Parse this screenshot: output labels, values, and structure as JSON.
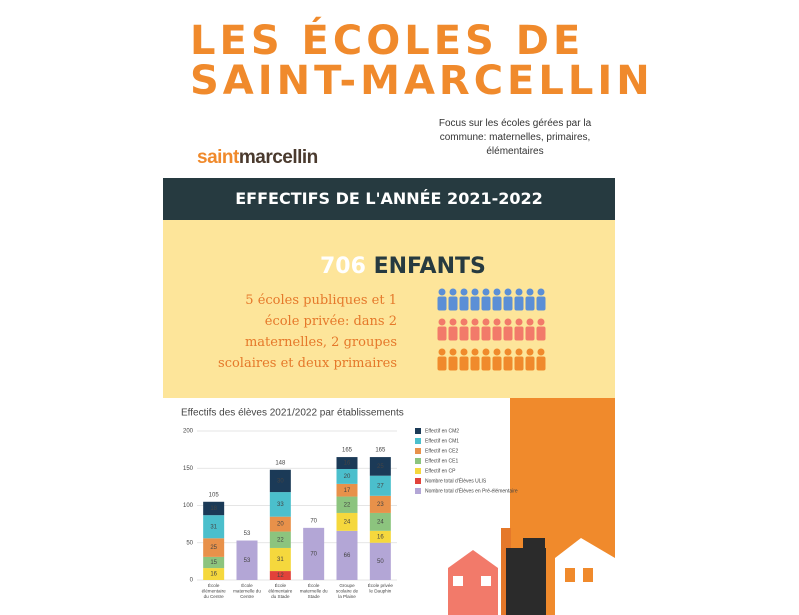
{
  "header": {
    "title_line1": "LES ÉCOLES DE",
    "title_line2": "SAINT-MARCELLIN",
    "subtitle": "Focus sur les écoles gérées par la commune: maternelles, primaires, élémentaires",
    "logo_part1": "saint",
    "logo_part2": "marcellin"
  },
  "banner": {
    "title": "EFFECTIFS DE L'ANNÉE 2021-2022"
  },
  "summary": {
    "count": "706",
    "count_label": "ENFANTS",
    "description": "5 écoles publiques et 1 école privée: dans 2 maternelles, 2 groupes scolaires et deux primaires"
  },
  "chart_data": {
    "type": "stacked_bar",
    "title": "Effectifs des élèves 2021/2022 par établissements",
    "categories": [
      "École élémentaire du Centre",
      "École maternelle du Centre",
      "École élémentaire du Stade",
      "École maternelle du Stade",
      "Groupe scolaire de la Plaine",
      "École privée le Dauphin"
    ],
    "series": [
      {
        "name": "Effectif en CM2",
        "color": "#1b3a57",
        "values": [
          18,
          null,
          30,
          null,
          16,
          25
        ]
      },
      {
        "name": "Effectif en CM1",
        "color": "#4bbfcc",
        "values": [
          31,
          null,
          33,
          null,
          20,
          27
        ]
      },
      {
        "name": "Effectif en CE2",
        "color": "#e8914a",
        "values": [
          25,
          null,
          20,
          null,
          17,
          23
        ]
      },
      {
        "name": "Effectif en CE1",
        "color": "#8cc47e",
        "values": [
          15,
          null,
          22,
          null,
          22,
          24
        ]
      },
      {
        "name": "Effectif en CP",
        "color": "#f5d83d",
        "values": [
          16,
          null,
          31,
          null,
          24,
          16
        ]
      },
      {
        "name": "Nombre total d'Élèves ULIS",
        "color": "#e2423a",
        "values": [
          null,
          null,
          12,
          null,
          null,
          null
        ]
      },
      {
        "name": "Nombre total d'Élèves en Pré-élémentaire",
        "color": "#b3a6d6",
        "values": [
          null,
          53,
          null,
          70,
          66,
          50
        ]
      }
    ],
    "totals": [
      105,
      53,
      148,
      70,
      165,
      165
    ],
    "ylim": [
      0,
      200
    ],
    "yticks": [
      0,
      50,
      100,
      150,
      200
    ],
    "grid": true
  }
}
